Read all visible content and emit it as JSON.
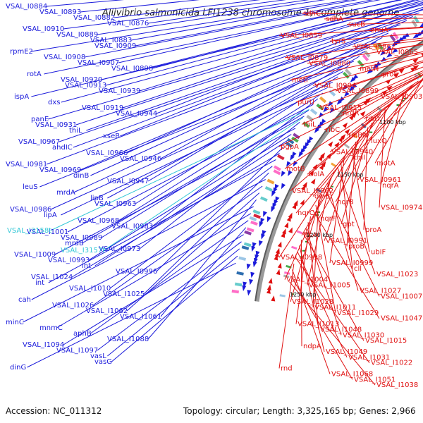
{
  "title": "Aliivibrio salmonicida LFI1238 chromosome 1, complete genome",
  "footer": {
    "accession": "Accession: NC_011312",
    "topology": "Topology: circular; Length: 3,325,165 bp; Genes: 2,966"
  },
  "colors": {
    "forward": "#1a1adb",
    "reverse": "#e01010",
    "rna": "#33c7d6",
    "backbone": "#9a9a9a"
  },
  "kbp_ticks": [
    "950 kbp",
    "1000 kbp",
    "1050 kbp",
    "1100 kbp",
    "1150 kbp",
    "1200 kbp",
    "1250 kbp"
  ],
  "labels_left": [
    "VSAL_I0884",
    "VSAL_I0893",
    "VSAL_I0882",
    "VSAL_I0876",
    "VSAL_I0910",
    "VSAL_I0889",
    "VSAL_I0883",
    "VSAL_I0909",
    "rpmE2",
    "VSAL_I0908",
    "VSAL_I0907",
    "VSAL_I0898",
    "rotA",
    "VSAL_I0920",
    "VSAL_I0913",
    "VSAL_I0939",
    "ispA",
    "dxs",
    "VSAL_I0919",
    "VSAL_I0944",
    "panE",
    "VSAL_I0931",
    "thiL",
    "xseB",
    "VSAL_I0967",
    "ahdIC",
    "VSAL_I0966",
    "VSAL_I0946",
    "VSAL_I0981",
    "VSAL_I0969",
    "dinB",
    "VSAL_I0947",
    "leuS",
    "mrdA",
    "lipB",
    "VSAL_I0963",
    "VSAL_I0986",
    "lipA",
    "VSAL_I0968",
    "VSAL_I0983",
    "VSAL_I1001",
    "VSAL_I0989",
    "mrdB",
    "VSAL_I0973",
    "VSAL_I1009",
    "VSAL_I0993",
    "int",
    "VSAL_I0996",
    "VSAL_I1024",
    "int",
    "VSAL_I1010",
    "VSAL_I1025",
    "cah",
    "VSAL_I1026",
    "VSAL_I1062",
    "VSAL_I1061",
    "minC",
    "mnmC",
    "aphB",
    "VSAL_I1088",
    "VSAL_I1094",
    "VSAL_I1097",
    "vasL",
    "vasG",
    "dinG"
  ],
  "labels_rna": [
    "VSAL_I3158t",
    "VSAL_I3157t"
  ],
  "labels_right": [
    "sdhC",
    "sdhA",
    "sucB",
    "znuA",
    "VSAL_I0859",
    "tyrS",
    "VSAL_I0862",
    "VSAL_I0865",
    "VSAL_I0879",
    "VSAL_I0880",
    "metN",
    "proS",
    "metI",
    "VSAL_I0904",
    "VSAL_I0899",
    "VSAL_I0903",
    "purU",
    "VSAL_I0915",
    "nrdR",
    "ribD",
    "thiL",
    "ribC",
    "ribBA",
    "luxQ",
    "pgpA",
    "VSAL_I0940",
    "thiI",
    "motA",
    "motB",
    "bolA",
    "VSAL_I0961",
    "nqrA",
    "VSAL_I0962",
    "dinB",
    "nqrB",
    "VSAL_I0974",
    "nqrC",
    "nqrF",
    "gpt",
    "proA",
    "frsA",
    "VSAL_I0991",
    "proB",
    "ubiF",
    "VSAL_I0998",
    "VSAL_I0999",
    "cll",
    "VSAL_I1023",
    "VSAL_I1004",
    "VSAL_I1005",
    "VSAL_I1027",
    "VSAL_I1007",
    "VSAL_I1028",
    "VSAL_I1011",
    "VSAL_I1029",
    "VSAL_I1047",
    "VSAL_I1013",
    "VSAL_I1048",
    "VSAL_I1030",
    "VSAL_I1015",
    "ndpA",
    "VSAL_I1049",
    "VSAL_I1031",
    "VSAL_I1022",
    "rnd",
    "VSAL_I1068",
    "VSAL_I1051",
    "VSAL_I1038"
  ]
}
